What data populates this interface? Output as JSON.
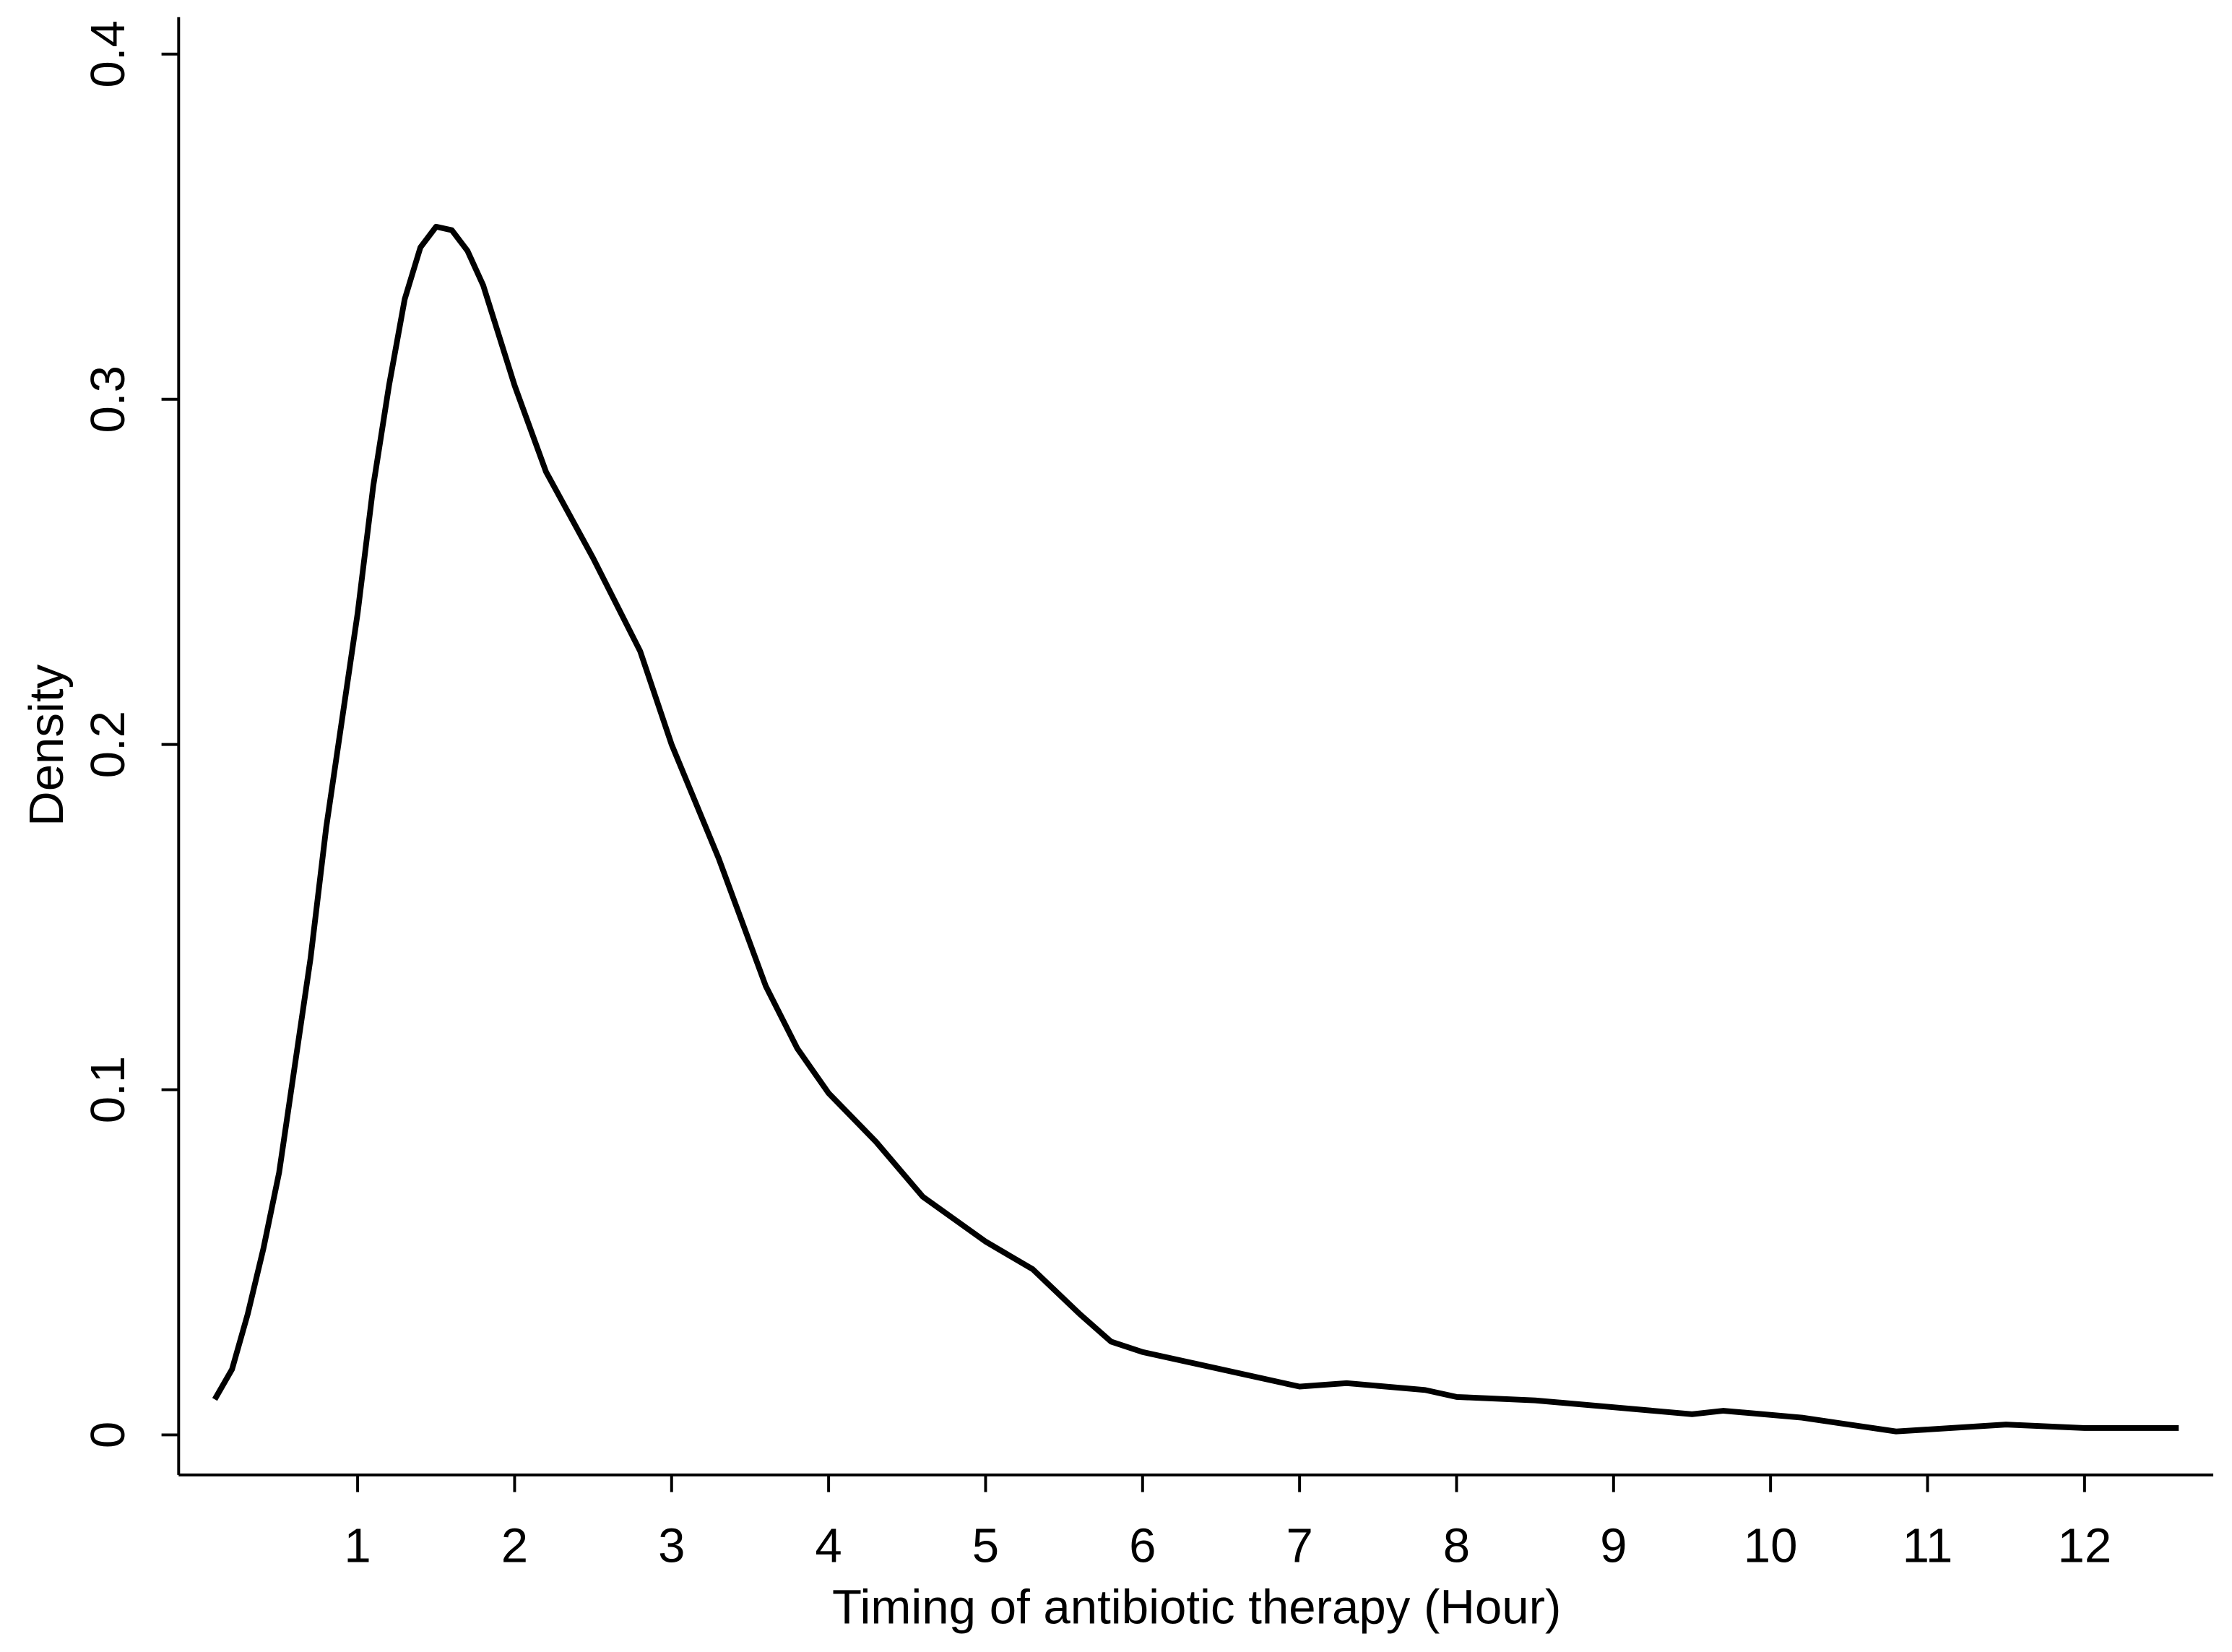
{
  "chart_data": {
    "type": "line",
    "x_label": "Timing of antibiotic therapy (Hour)",
    "y_label": "Density",
    "xlim": [
      -0.14,
      12.82
    ],
    "ylim": [
      -0.0116,
      0.4107
    ],
    "xticks": [
      1,
      2,
      3,
      4,
      5,
      6,
      7,
      8,
      9,
      10,
      11,
      12
    ],
    "yticks": [
      0,
      0.1,
      0.2,
      0.3,
      0.4
    ],
    "grid": false,
    "series": [
      {
        "color": "#000000",
        "x": [
          0.09,
          0.2,
          0.3,
          0.4,
          0.5,
          0.6,
          0.7,
          0.8,
          1.0,
          1.1,
          1.2,
          1.3,
          1.4,
          1.5,
          1.6,
          1.7,
          1.8,
          2.0,
          2.2,
          2.5,
          2.8,
          3.0,
          3.3,
          3.6,
          3.8,
          4.0,
          4.3,
          4.6,
          5.0,
          5.3,
          5.6,
          5.8,
          6.0,
          6.5,
          7.0,
          7.3,
          7.8,
          8.0,
          8.5,
          9.0,
          9.5,
          9.7,
          10.2,
          10.8,
          11.5,
          12.0,
          12.6
        ],
        "values": [
          0.0103,
          0.019,
          0.035,
          0.054,
          0.076,
          0.107,
          0.138,
          0.176,
          0.238,
          0.275,
          0.304,
          0.329,
          0.344,
          0.35,
          0.349,
          0.343,
          0.333,
          0.304,
          0.279,
          0.254,
          0.227,
          0.2,
          0.167,
          0.13,
          0.112,
          0.099,
          0.085,
          0.069,
          0.056,
          0.048,
          0.035,
          0.027,
          0.024,
          0.019,
          0.014,
          0.015,
          0.013,
          0.011,
          0.01,
          0.008,
          0.006,
          0.007,
          0.005,
          0.001,
          0.003,
          0.002,
          0.002
        ]
      }
    ]
  }
}
